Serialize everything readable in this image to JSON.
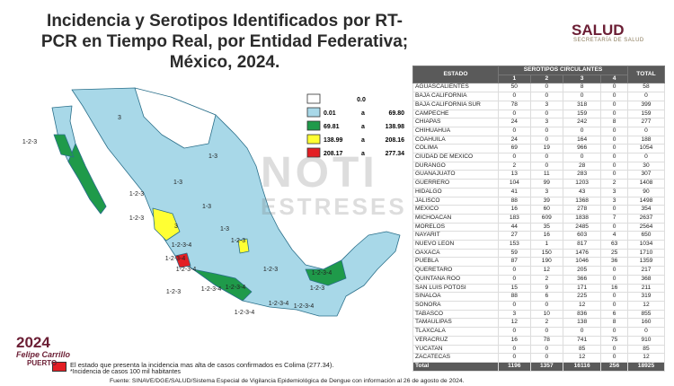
{
  "header": {
    "title": [
      "Incidencia y Serotipos Identificados por RT-",
      "PCR en Tiempo Real, por Entidad Federativa;",
      "México, 2024."
    ],
    "logo": "SALUD",
    "logo_sub": "SECRETARÍA DE SALUD"
  },
  "legend": [
    {
      "label": "0.0",
      "color": "#ffffff"
    },
    {
      "min": "0.01",
      "sep": "a",
      "max": "69.80",
      "color": "#a8d8e8"
    },
    {
      "min": "69.81",
      "sep": "a",
      "max": "138.98",
      "color": "#1f9a4a"
    },
    {
      "min": "138.99",
      "sep": "a",
      "max": "208.16",
      "color": "#ffff33"
    },
    {
      "min": "208.17",
      "sep": "a",
      "max": "277.34",
      "color": "#e31e24"
    }
  ],
  "map_labels": [
    "3",
    "1-2-3",
    "1-3",
    "1-3",
    "1-2-3",
    "1-3",
    "1-2-3",
    "3",
    "1-2-3-4",
    "1-3",
    "1-2-3-4",
    "1-2-3-4",
    "1-2-3",
    "1-2-3-4",
    "1-2-3",
    "1-2-3-4",
    "1-2-3",
    "1-2-3-4",
    "1-2-3-4",
    "1-2-3-4",
    "1-2-3",
    "1-2-3-4"
  ],
  "watermark": [
    "NOTI",
    "ESTRESES"
  ],
  "table": {
    "header": [
      "ESTADO",
      "SEROTIPOS CIRCULANTES",
      "TOTAL"
    ],
    "subheader": [
      "1",
      "2",
      "3",
      "4"
    ],
    "rows": [
      [
        "AGUASCALIENTES",
        50,
        0,
        8,
        0,
        58
      ],
      [
        "BAJA CALIFORNIA",
        0,
        0,
        0,
        0,
        0
      ],
      [
        "BAJA CALIFORNIA SUR",
        78,
        3,
        318,
        0,
        399
      ],
      [
        "CAMPECHE",
        0,
        0,
        159,
        0,
        159
      ],
      [
        "CHIAPAS",
        24,
        3,
        242,
        8,
        277
      ],
      [
        "CHIHUAHUA",
        0,
        0,
        0,
        0,
        0
      ],
      [
        "COAHUILA",
        24,
        0,
        164,
        0,
        188
      ],
      [
        "COLIMA",
        69,
        19,
        966,
        0,
        1054
      ],
      [
        "CIUDAD DE MEXICO",
        0,
        0,
        0,
        0,
        0
      ],
      [
        "DURANGO",
        2,
        0,
        28,
        0,
        30
      ],
      [
        "GUANAJUATO",
        13,
        11,
        283,
        0,
        307
      ],
      [
        "GUERRERO",
        104,
        99,
        1203,
        2,
        1408
      ],
      [
        "HIDALGO",
        41,
        3,
        43,
        3,
        90
      ],
      [
        "JALISCO",
        88,
        39,
        1368,
        3,
        1498
      ],
      [
        "MEXICO",
        16,
        60,
        278,
        0,
        354
      ],
      [
        "MICHOACAN",
        183,
        609,
        1838,
        7,
        2637
      ],
      [
        "MORELOS",
        44,
        35,
        2485,
        0,
        2564
      ],
      [
        "NAYARIT",
        27,
        16,
        603,
        4,
        650
      ],
      [
        "NUEVO LEON",
        153,
        1,
        817,
        63,
        1034
      ],
      [
        "OAXACA",
        59,
        150,
        1476,
        25,
        1710
      ],
      [
        "PUEBLA",
        87,
        190,
        1046,
        36,
        1359
      ],
      [
        "QUERETARO",
        0,
        12,
        205,
        0,
        217
      ],
      [
        "QUINTANA ROO",
        0,
        2,
        366,
        0,
        368
      ],
      [
        "SAN LUIS POTOSI",
        15,
        9,
        171,
        16,
        211
      ],
      [
        "SINALOA",
        88,
        6,
        225,
        0,
        319
      ],
      [
        "SONORA",
        0,
        0,
        12,
        0,
        12
      ],
      [
        "TABASCO",
        3,
        10,
        836,
        6,
        855
      ],
      [
        "TAMAULIPAS",
        12,
        2,
        138,
        8,
        160
      ],
      [
        "TLAXCALA",
        0,
        0,
        0,
        0,
        0
      ],
      [
        "VERACRUZ",
        16,
        78,
        741,
        75,
        910
      ],
      [
        "YUCATAN",
        0,
        0,
        85,
        0,
        85
      ],
      [
        "ZACATECAS",
        0,
        0,
        12,
        0,
        12
      ]
    ],
    "total": [
      "Total",
      1196,
      1357,
      16116,
      256,
      18925
    ]
  },
  "notes": {
    "highlight": "El estado que presenta la incidencia mas alta de casos confirmados es Colima (277.34).",
    "incidence": "*Incidencia de casos 100 mil habitantes",
    "source": "Fuente: SINAVE/DGE/SALUD/Sistema Especial de Vigilancia Epidemiológica de Dengue con información al 26 de agosto de 2024."
  },
  "footer_logo": [
    "2024",
    "Felipe Carrillo",
    "PUERTO"
  ]
}
